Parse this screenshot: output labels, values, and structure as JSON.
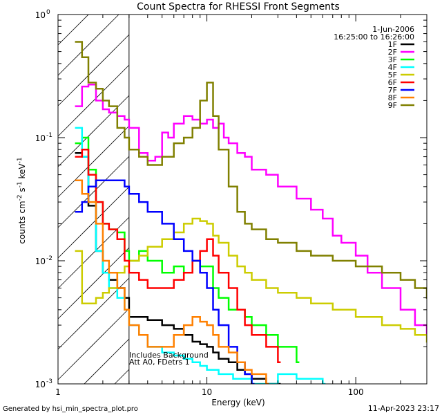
{
  "chart_data": {
    "type": "line",
    "title": "Count Spectra for RHESSI Front Segments",
    "xlabel": "Energy (keV)",
    "ylabel_parts": {
      "main": "counts cm",
      "exp1": "-2",
      "mid": " s",
      "exp2": "-1",
      "tail": " keV",
      "exp3": "-1"
    },
    "x_scale": "log",
    "y_scale": "log",
    "xlim": [
      1,
      300
    ],
    "ylim": [
      0.001,
      1
    ],
    "x_ticks": [
      {
        "value": 1,
        "label": "1"
      },
      {
        "value": 10,
        "label": "10"
      },
      {
        "value": 100,
        "label": "100"
      }
    ],
    "y_ticks": [
      {
        "value": 1,
        "base": "10",
        "exp": "0"
      },
      {
        "value": 0.1,
        "base": "10",
        "exp": "-1"
      },
      {
        "value": 0.01,
        "base": "10",
        "exp": "-2"
      },
      {
        "value": 0.001,
        "base": "10",
        "exp": "-3"
      }
    ],
    "date": "1-Jun-2006",
    "time_range": "16:25:00 to 16:26:00",
    "background_note": [
      "Includes Background",
      "Att A0, FDetrs 1"
    ],
    "attenuator_hatch_xmax": 3,
    "legend_position": "top-right",
    "series": [
      {
        "name": "1F",
        "color": "#000000",
        "x": [
          1.3,
          1.45,
          1.6,
          1.8,
          2.0,
          2.2,
          2.5,
          2.8,
          3.0,
          3.5,
          4,
          5,
          6,
          7,
          8,
          9,
          10,
          11,
          12,
          14,
          16,
          18,
          20,
          25,
          30
        ],
        "y": [
          0.075,
          0.07,
          0.028,
          0.012,
          0.008,
          0.007,
          0.006,
          0.005,
          0.0035,
          0.0035,
          0.0033,
          0.003,
          0.0028,
          0.0025,
          0.0022,
          0.0021,
          0.002,
          0.0018,
          0.0016,
          0.0015,
          0.0013,
          0.0012,
          0.0011,
          0.001,
          0.001
        ]
      },
      {
        "name": "2F",
        "color": "#ff00ff",
        "x": [
          1.3,
          1.45,
          1.6,
          1.8,
          2.0,
          2.2,
          2.5,
          2.8,
          3.0,
          3.5,
          4,
          4.5,
          5,
          5.5,
          6,
          7,
          8,
          9,
          10,
          11,
          12,
          13,
          14,
          16,
          18,
          20,
          25,
          30,
          40,
          50,
          60,
          70,
          80,
          100,
          120,
          150,
          200,
          250,
          300
        ],
        "y": [
          0.18,
          0.26,
          0.27,
          0.2,
          0.17,
          0.16,
          0.15,
          0.14,
          0.12,
          0.075,
          0.065,
          0.07,
          0.11,
          0.1,
          0.13,
          0.15,
          0.14,
          0.13,
          0.14,
          0.12,
          0.13,
          0.1,
          0.09,
          0.075,
          0.07,
          0.055,
          0.05,
          0.04,
          0.032,
          0.026,
          0.022,
          0.016,
          0.014,
          0.011,
          0.008,
          0.006,
          0.004,
          0.003,
          0.0025
        ]
      },
      {
        "name": "3F",
        "color": "#00ff00",
        "x": [
          1.3,
          1.45,
          1.6,
          1.8,
          2.0,
          2.2,
          2.5,
          2.8,
          3.0,
          3.5,
          4,
          5,
          6,
          7,
          8,
          9,
          10,
          11,
          12,
          14,
          16,
          18,
          20,
          25,
          30,
          40
        ],
        "y": [
          0.09,
          0.1,
          0.055,
          0.03,
          0.02,
          0.018,
          0.017,
          0.012,
          0.01,
          0.012,
          0.01,
          0.008,
          0.009,
          0.008,
          0.01,
          0.009,
          0.009,
          0.006,
          0.005,
          0.004,
          0.004,
          0.0035,
          0.003,
          0.0025,
          0.002,
          0.0015
        ]
      },
      {
        "name": "4F",
        "color": "#00ffff",
        "x": [
          1.3,
          1.45,
          1.6,
          1.8,
          2.0,
          2.2,
          2.5,
          2.8,
          3.0,
          3.5,
          4,
          5,
          6,
          7,
          8,
          9,
          10,
          12,
          15,
          20,
          30,
          40,
          60
        ],
        "y": [
          0.12,
          0.07,
          0.03,
          0.012,
          0.008,
          0.006,
          0.005,
          0.004,
          0.003,
          0.0025,
          0.002,
          0.0018,
          0.0017,
          0.0016,
          0.0015,
          0.0014,
          0.0013,
          0.0012,
          0.0011,
          0.001,
          0.0012,
          0.0011,
          0.001
        ]
      },
      {
        "name": "5F",
        "color": "#cccc00",
        "x": [
          1.3,
          1.45,
          1.6,
          1.8,
          2.0,
          2.2,
          2.5,
          2.8,
          3.0,
          3.5,
          4,
          5,
          6,
          7,
          8,
          9,
          10,
          11,
          12,
          14,
          16,
          18,
          20,
          25,
          30,
          40,
          50,
          70,
          100,
          150,
          200,
          250,
          300
        ],
        "y": [
          0.012,
          0.0045,
          0.0045,
          0.005,
          0.0055,
          0.006,
          0.008,
          0.009,
          0.01,
          0.011,
          0.013,
          0.015,
          0.017,
          0.02,
          0.022,
          0.021,
          0.02,
          0.016,
          0.014,
          0.011,
          0.009,
          0.008,
          0.007,
          0.006,
          0.0055,
          0.005,
          0.0045,
          0.004,
          0.0035,
          0.003,
          0.0028,
          0.0025,
          0.0022
        ]
      },
      {
        "name": "6F",
        "color": "#ff0000",
        "x": [
          1.3,
          1.45,
          1.6,
          1.8,
          2.0,
          2.2,
          2.5,
          2.8,
          3.0,
          3.5,
          4,
          5,
          6,
          7,
          8,
          9,
          10,
          11,
          12,
          14,
          16,
          18,
          20,
          25,
          30
        ],
        "y": [
          0.07,
          0.08,
          0.05,
          0.03,
          0.02,
          0.018,
          0.015,
          0.01,
          0.008,
          0.007,
          0.006,
          0.006,
          0.007,
          0.008,
          0.01,
          0.012,
          0.015,
          0.011,
          0.008,
          0.006,
          0.004,
          0.003,
          0.0025,
          0.002,
          0.0015
        ]
      },
      {
        "name": "7F",
        "color": "#0000ff",
        "x": [
          1.3,
          1.45,
          1.6,
          1.8,
          2.0,
          2.2,
          2.5,
          2.8,
          3.0,
          3.5,
          4,
          5,
          6,
          7,
          8,
          9,
          10,
          11,
          12,
          14,
          16,
          18,
          20
        ],
        "y": [
          0.025,
          0.03,
          0.04,
          0.045,
          0.045,
          0.045,
          0.045,
          0.04,
          0.035,
          0.03,
          0.025,
          0.02,
          0.015,
          0.012,
          0.01,
          0.008,
          0.006,
          0.004,
          0.003,
          0.002,
          0.0015,
          0.0012,
          0.001
        ]
      },
      {
        "name": "8F",
        "color": "#ff8000",
        "x": [
          1.3,
          1.45,
          1.6,
          1.8,
          2.0,
          2.2,
          2.5,
          2.8,
          3.0,
          3.5,
          4,
          5,
          6,
          7,
          8,
          9,
          10,
          11,
          12,
          14,
          16,
          18,
          20,
          25
        ],
        "y": [
          0.045,
          0.035,
          0.03,
          0.02,
          0.01,
          0.008,
          0.006,
          0.004,
          0.003,
          0.0025,
          0.002,
          0.002,
          0.0025,
          0.003,
          0.0035,
          0.0032,
          0.003,
          0.0025,
          0.002,
          0.0018,
          0.0015,
          0.0013,
          0.0012,
          0.001
        ]
      },
      {
        "name": "9F",
        "color": "#808000",
        "x": [
          1.3,
          1.45,
          1.6,
          1.8,
          2.0,
          2.2,
          2.5,
          2.8,
          3.0,
          3.5,
          4,
          5,
          6,
          7,
          8,
          9,
          10,
          11,
          12,
          14,
          16,
          18,
          20,
          25,
          30,
          40,
          50,
          70,
          100,
          150,
          200,
          250,
          300
        ],
        "y": [
          0.6,
          0.45,
          0.28,
          0.25,
          0.2,
          0.18,
          0.12,
          0.1,
          0.08,
          0.07,
          0.06,
          0.07,
          0.09,
          0.1,
          0.12,
          0.2,
          0.28,
          0.15,
          0.08,
          0.04,
          0.025,
          0.02,
          0.018,
          0.015,
          0.014,
          0.012,
          0.011,
          0.01,
          0.009,
          0.008,
          0.007,
          0.006,
          0.005
        ]
      }
    ]
  },
  "footer": {
    "generated_by": "Generated by hsi_min_spectra_plot.pro",
    "timestamp": "11-Apr-2023 23:17"
  }
}
